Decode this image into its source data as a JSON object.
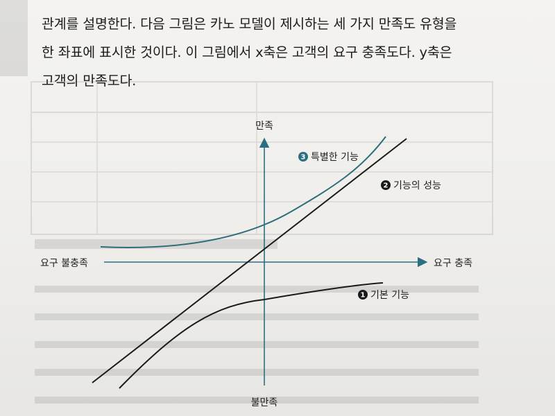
{
  "body": {
    "lines": [
      "관계를 설명한다. 다음 그림은 카노 모델이 제시하는 세 가지 만족도 유형을",
      "한 좌표에 표시한 것이다. 이 그림에서 x축은 고객의 요구 충족도다. y축은",
      "고객의 만족도다."
    ]
  },
  "figure": {
    "y_axis_top_label": "만족",
    "y_axis_bottom_label": "불만족",
    "x_axis_left_label": "요구 불충족",
    "x_axis_right_label": "요구 충족",
    "curves": [
      {
        "number": "3",
        "label": "특별한 기능",
        "color": "#2e6e7a"
      },
      {
        "number": "2",
        "label": "기능의 성능",
        "color": "#1a1a1a"
      },
      {
        "number": "1",
        "label": "기본 기능",
        "color": "#1a1a1a"
      }
    ],
    "axis_color": "#2c6f82"
  }
}
